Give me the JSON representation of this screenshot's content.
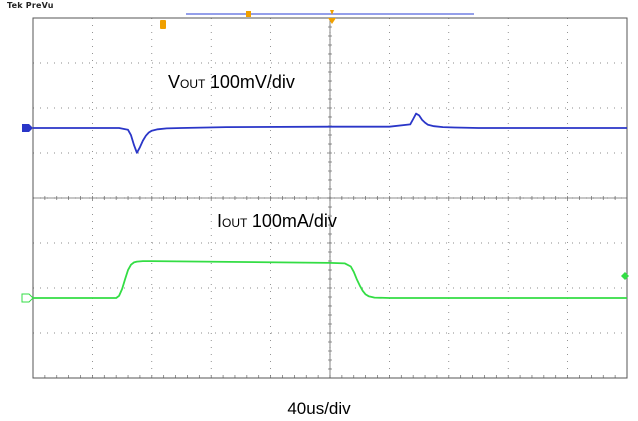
{
  "header": {
    "brand": "Tek",
    "mode": "PreVu"
  },
  "annotations": {
    "vout": {
      "symbol": "V",
      "subscript": "OUT",
      "scale": "100mV/div"
    },
    "iout": {
      "symbol": "I",
      "subscript": "OUT",
      "scale": "100mA/div"
    }
  },
  "timebase_label": "40us/div",
  "colors": {
    "vout_trace": "#2a36c8",
    "iout_trace": "#33dd44",
    "grid": "#666666",
    "frame": "#555555",
    "trigger_marker": "#f0a000",
    "record_bar": "#5566dd",
    "ch1_marker": "#2a36c8",
    "ch4_marker": "#33dd44"
  },
  "chart_data": {
    "type": "line",
    "title": "",
    "xlabel": "40us/div",
    "grid": true,
    "divisions": {
      "x": 10,
      "y": 8
    },
    "x_unit": "us",
    "series": [
      {
        "name": "VOUT",
        "unit": "mV",
        "scale_per_div": "100mV/div",
        "x": [
          0,
          58,
          64,
          66,
          68,
          70,
          72,
          74,
          76,
          78,
          80,
          84,
          90,
          100,
          130,
          200,
          240,
          254,
          256,
          258,
          260,
          262,
          264,
          266,
          270,
          276,
          284,
          300,
          360,
          400
        ],
        "y": [
          0,
          0,
          -4,
          -16,
          -38,
          -55,
          -43,
          -28,
          -17,
          -10,
          -6,
          -3,
          -1,
          0,
          2,
          3,
          3,
          8,
          20,
          32,
          28,
          18,
          12,
          7,
          4,
          2,
          1,
          0,
          0,
          0
        ]
      },
      {
        "name": "IOUT",
        "unit": "mA",
        "scale_per_div": "100mA/div",
        "x": [
          0,
          56,
          58,
          60,
          62,
          64,
          66,
          68,
          70,
          74,
          80,
          200,
          210,
          214,
          216,
          218,
          220,
          222,
          224,
          226,
          230,
          240,
          260,
          400
        ],
        "y": [
          0,
          0,
          5,
          20,
          42,
          62,
          74,
          79,
          81,
          82,
          82,
          78,
          77,
          70,
          58,
          42,
          28,
          16,
          8,
          4,
          1,
          0,
          0,
          0
        ]
      }
    ]
  }
}
